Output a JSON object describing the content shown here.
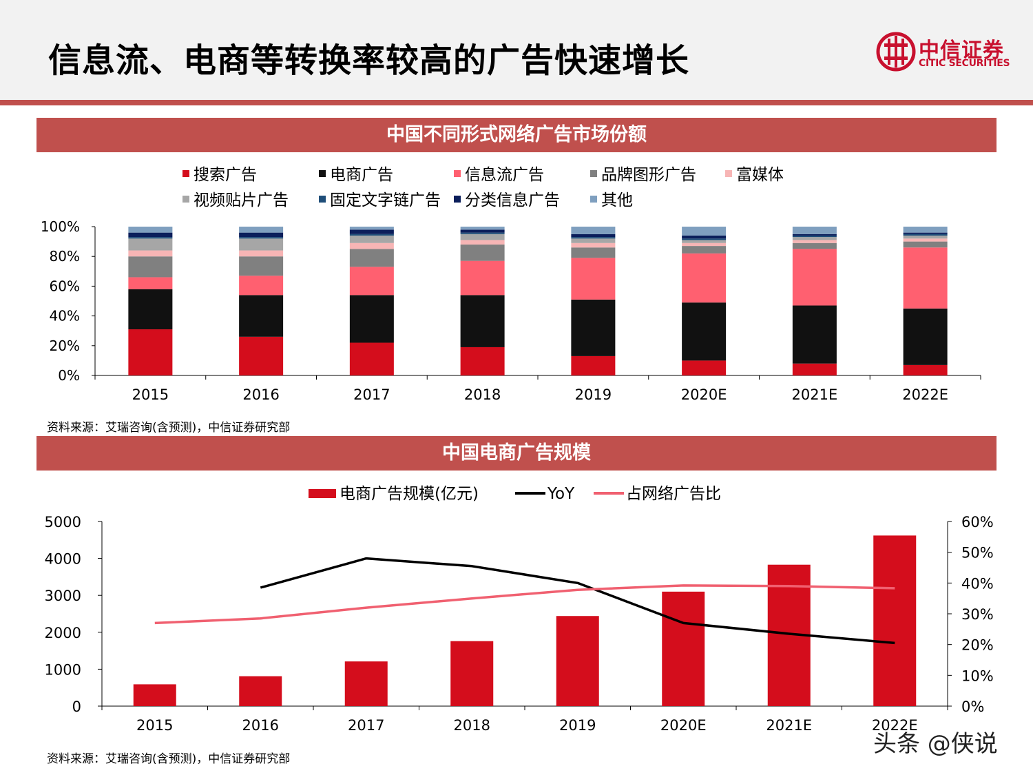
{
  "page": {
    "title": "信息流、电商等转换率较高的广告快速增长",
    "logo_cn": "中信证券",
    "logo_en": "CITIC SECURITIES",
    "watermark": "头条 @侠说"
  },
  "colors": {
    "accent": "#c0504d",
    "brand": "#c8102e"
  },
  "chart1": {
    "banner": "中国不同形式网络广告市场份额",
    "source": "资料来源：艾瑞咨询(含预测)，中信证券研究部"
  },
  "chart2": {
    "banner": "中国电商广告规模",
    "source": "资料来源：艾瑞咨询(含预测)，中信证券研究部"
  },
  "chart_data": [
    {
      "type": "bar",
      "stacked": true,
      "title": "中国不同形式网络广告市场份额",
      "categories": [
        "2015",
        "2016",
        "2017",
        "2018",
        "2019",
        "2020E",
        "2021E",
        "2022E"
      ],
      "ylim": [
        0,
        100
      ],
      "yticks": [
        "0%",
        "20%",
        "40%",
        "60%",
        "80%",
        "100%"
      ],
      "series": [
        {
          "name": "搜索广告",
          "color": "#d40d1c",
          "values": [
            31,
            26,
            22,
            19,
            13,
            10,
            8,
            7
          ]
        },
        {
          "name": "电商广告",
          "color": "#111111",
          "values": [
            27,
            28,
            32,
            35,
            38,
            39,
            39,
            38
          ]
        },
        {
          "name": "信息流广告",
          "color": "#ff6070",
          "values": [
            8,
            13,
            19,
            23,
            28,
            33,
            38,
            41
          ]
        },
        {
          "name": "品牌图形广告",
          "color": "#808080",
          "values": [
            14,
            13,
            12,
            11,
            7,
            5,
            4,
            4
          ]
        },
        {
          "name": "富媒体",
          "color": "#f7b5b5",
          "values": [
            4,
            4,
            4,
            3,
            3,
            2,
            2,
            2
          ]
        },
        {
          "name": "视频贴片广告",
          "color": "#a6a6a6",
          "values": [
            8,
            8,
            5,
            4,
            3,
            2,
            2,
            2
          ]
        },
        {
          "name": "固定文字链广告",
          "color": "#1f4e79",
          "values": [
            1,
            1,
            1,
            1,
            1,
            1,
            1,
            1
          ]
        },
        {
          "name": "分类信息广告",
          "color": "#0b1e5b",
          "values": [
            3,
            3,
            3,
            2,
            2,
            2,
            1,
            1
          ]
        },
        {
          "name": "其他",
          "color": "#7f9fbf",
          "values": [
            4,
            4,
            2,
            2,
            5,
            6,
            5,
            4
          ]
        }
      ]
    },
    {
      "type": "bar",
      "title": "中国电商广告规模",
      "categories": [
        "2015",
        "2016",
        "2017",
        "2018",
        "2019",
        "2020E",
        "2021E",
        "2022E"
      ],
      "ylim": [
        0,
        5000
      ],
      "yticks": [
        "0",
        "1000",
        "2000",
        "3000",
        "4000",
        "5000"
      ],
      "y2lim": [
        0,
        60
      ],
      "y2ticks": [
        "0%",
        "10%",
        "20%",
        "30%",
        "40%",
        "50%",
        "60%"
      ],
      "series": [
        {
          "name": "电商广告规模(亿元)",
          "type": "bar",
          "axis": "left",
          "color": "#d40d1c",
          "values": [
            590,
            810,
            1210,
            1760,
            2440,
            3100,
            3830,
            4620
          ]
        },
        {
          "name": "YoY",
          "type": "line",
          "axis": "right",
          "color": "#000000",
          "values": [
            null,
            38.5,
            48,
            45.5,
            40,
            27,
            23.5,
            20.5
          ]
        },
        {
          "name": "占网络广告比",
          "type": "line",
          "axis": "right",
          "color": "#f06070",
          "values": [
            27,
            28.5,
            32,
            35,
            37.8,
            39.2,
            39,
            38.3
          ]
        }
      ]
    }
  ]
}
